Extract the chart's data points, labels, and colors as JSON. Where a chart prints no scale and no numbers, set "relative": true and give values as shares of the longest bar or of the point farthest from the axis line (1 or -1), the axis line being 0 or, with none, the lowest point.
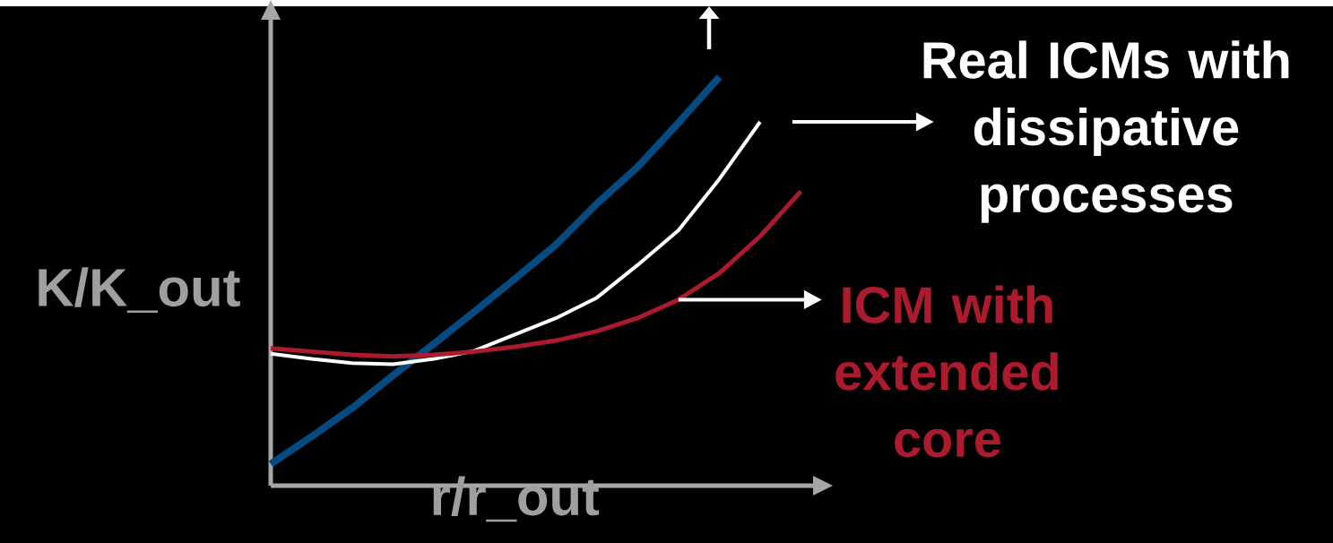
{
  "chart_data": {
    "type": "line",
    "relative": true,
    "xlabel": "r/r_out",
    "ylabel": "K/K_out",
    "marker": "none",
    "line_style": "solid",
    "categories": [
      null,
      null,
      null,
      null,
      null,
      null,
      null,
      null,
      null,
      null,
      null,
      null,
      null,
      null
    ],
    "series": [
      {
        "color": "#054a80",
        "values": [
          0.053,
          0.12,
          0.19,
          0.27,
          0.347,
          0.426,
          0.507,
          0.59,
          0.69,
          0.78,
          0.888,
          1.0,
          null,
          null
        ]
      },
      {
        "color": "#ffffff",
        "values": [
          0.323,
          0.31,
          0.3,
          0.297,
          0.31,
          0.33,
          0.37,
          0.41,
          0.46,
          0.54,
          0.625,
          0.75,
          0.89,
          null
        ]
      },
      {
        "color": "#ab1a2d",
        "values": [
          0.336,
          0.328,
          0.32,
          0.316,
          0.32,
          0.328,
          0.34,
          0.355,
          0.378,
          0.41,
          0.455,
          0.52,
          0.61,
          0.72
        ]
      }
    ],
    "annotations": [
      "Real ICMs with dissipative processes",
      "ICM with extended core"
    ]
  }
}
